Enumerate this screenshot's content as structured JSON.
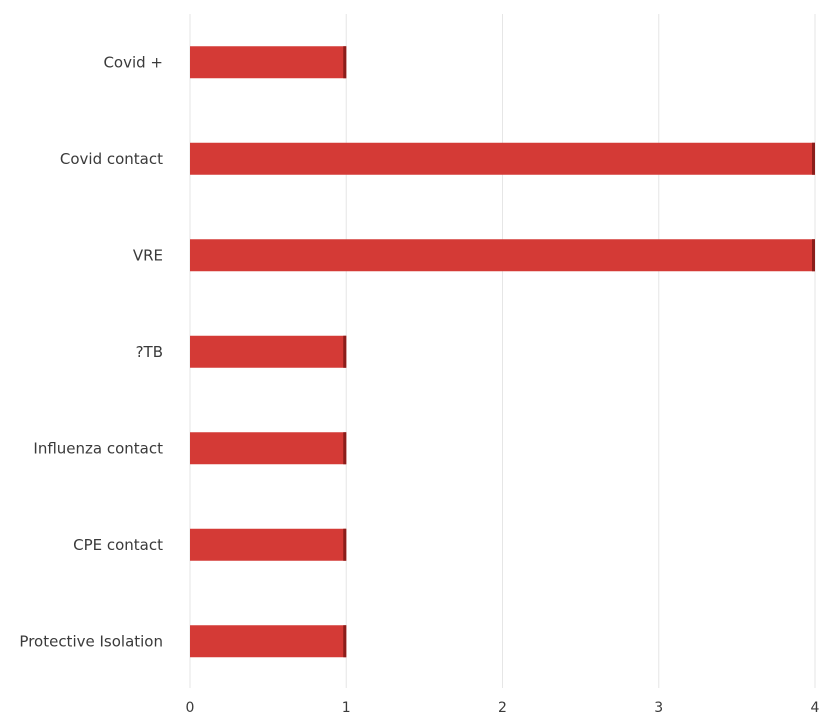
{
  "chart_data": {
    "type": "bar",
    "orientation": "horizontal",
    "categories": [
      "Covid +",
      "Covid contact",
      "VRE",
      "?TB",
      "Influenza contact",
      "CPE contact",
      "Protective Isolation"
    ],
    "values": [
      1,
      4,
      4,
      1,
      1,
      1,
      1
    ],
    "x_ticks": [
      "0",
      "1",
      "2",
      "3",
      "4"
    ],
    "xlim": [
      0,
      4
    ],
    "xlabel": "",
    "ylabel": "",
    "title": "",
    "grid": true,
    "legend": "none"
  },
  "colors": {
    "bar": "#d43a36",
    "bar_edge": "#8c1d1a",
    "grid": "#e6e6e6",
    "text": "#3a3a3a"
  }
}
